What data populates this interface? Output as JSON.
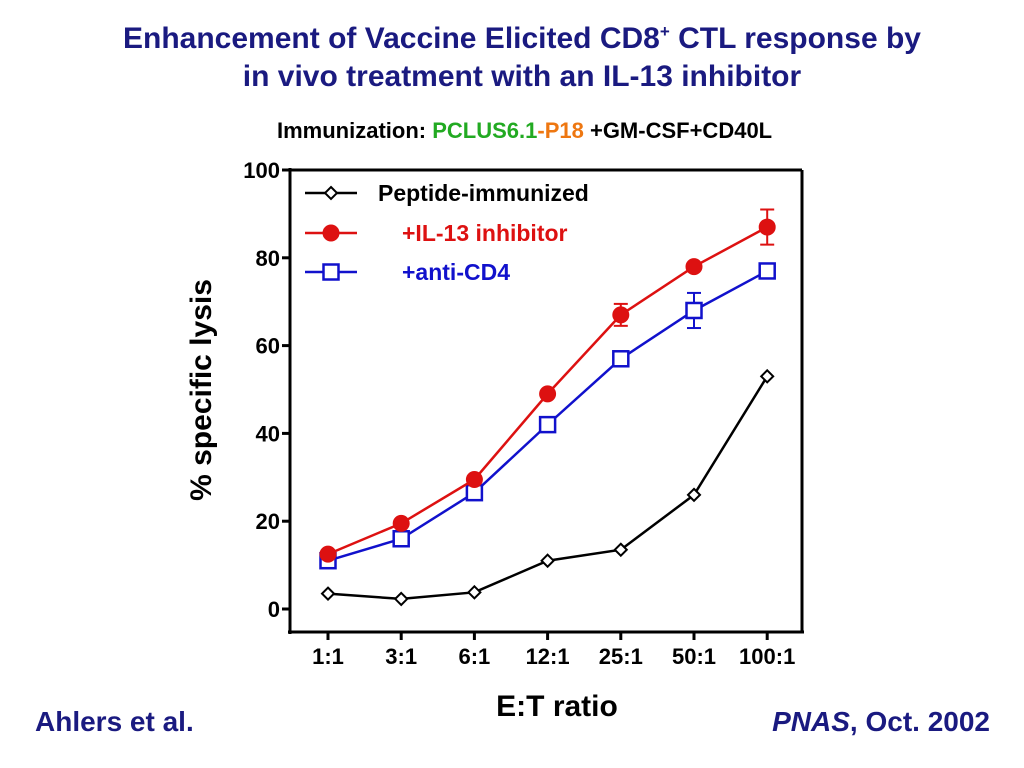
{
  "slide": {
    "title_line1_before_sup": "Enhancement of Vaccine Elicited CD8",
    "title_sup": "+",
    "title_line1_after_sup": " CTL response by",
    "title_line2": "in vivo treatment with an IL-13 inhibitor",
    "subtitle_prefix": "Immunization: ",
    "subtitle_part1": "PCLUS6.1",
    "subtitle_dash": "-",
    "subtitle_part2": "P18",
    "subtitle_suffix": " +GM-CSF+CD40L",
    "footer_left_name": "Ahlers et al",
    "footer_left_dot": ".",
    "footer_right_journal": "PNAS",
    "footer_right_date": ", Oct. 2002",
    "colors": {
      "title": "#1a1a80",
      "subtitle_part1": "#22aa22",
      "subtitle_part2": "#ee7711"
    }
  },
  "chart_data": {
    "type": "line",
    "categories": [
      "1:1",
      "3:1",
      "6:1",
      "12:1",
      "25:1",
      "50:1",
      "100:1"
    ],
    "xlabel": "E:T ratio",
    "ylabel": "% specific lysis",
    "ylim": [
      0,
      100
    ],
    "yticks": [
      0,
      20,
      40,
      60,
      80,
      100
    ],
    "legend_position": "top-left",
    "grid": false,
    "series": [
      {
        "name": "Peptide-immunized",
        "color": "#000000",
        "marker": "diamond-open",
        "values": [
          3.5,
          2.3,
          3.8,
          11,
          13.5,
          26,
          53
        ],
        "errors": [
          0,
          0,
          0,
          0,
          0,
          0,
          0
        ]
      },
      {
        "name": "+IL-13 inhibitor",
        "color": "#dd1111",
        "marker": "circle-filled",
        "values": [
          12.5,
          19.5,
          29.5,
          49,
          67,
          78,
          87
        ],
        "errors": [
          0,
          0,
          0,
          0,
          2.5,
          0,
          4
        ]
      },
      {
        "name": "+anti-CD4",
        "color": "#1111cc",
        "marker": "square-open",
        "values": [
          11,
          16,
          26.5,
          42,
          57,
          68,
          77
        ],
        "errors": [
          0,
          0,
          0,
          0,
          0,
          4,
          1.5
        ]
      }
    ]
  }
}
